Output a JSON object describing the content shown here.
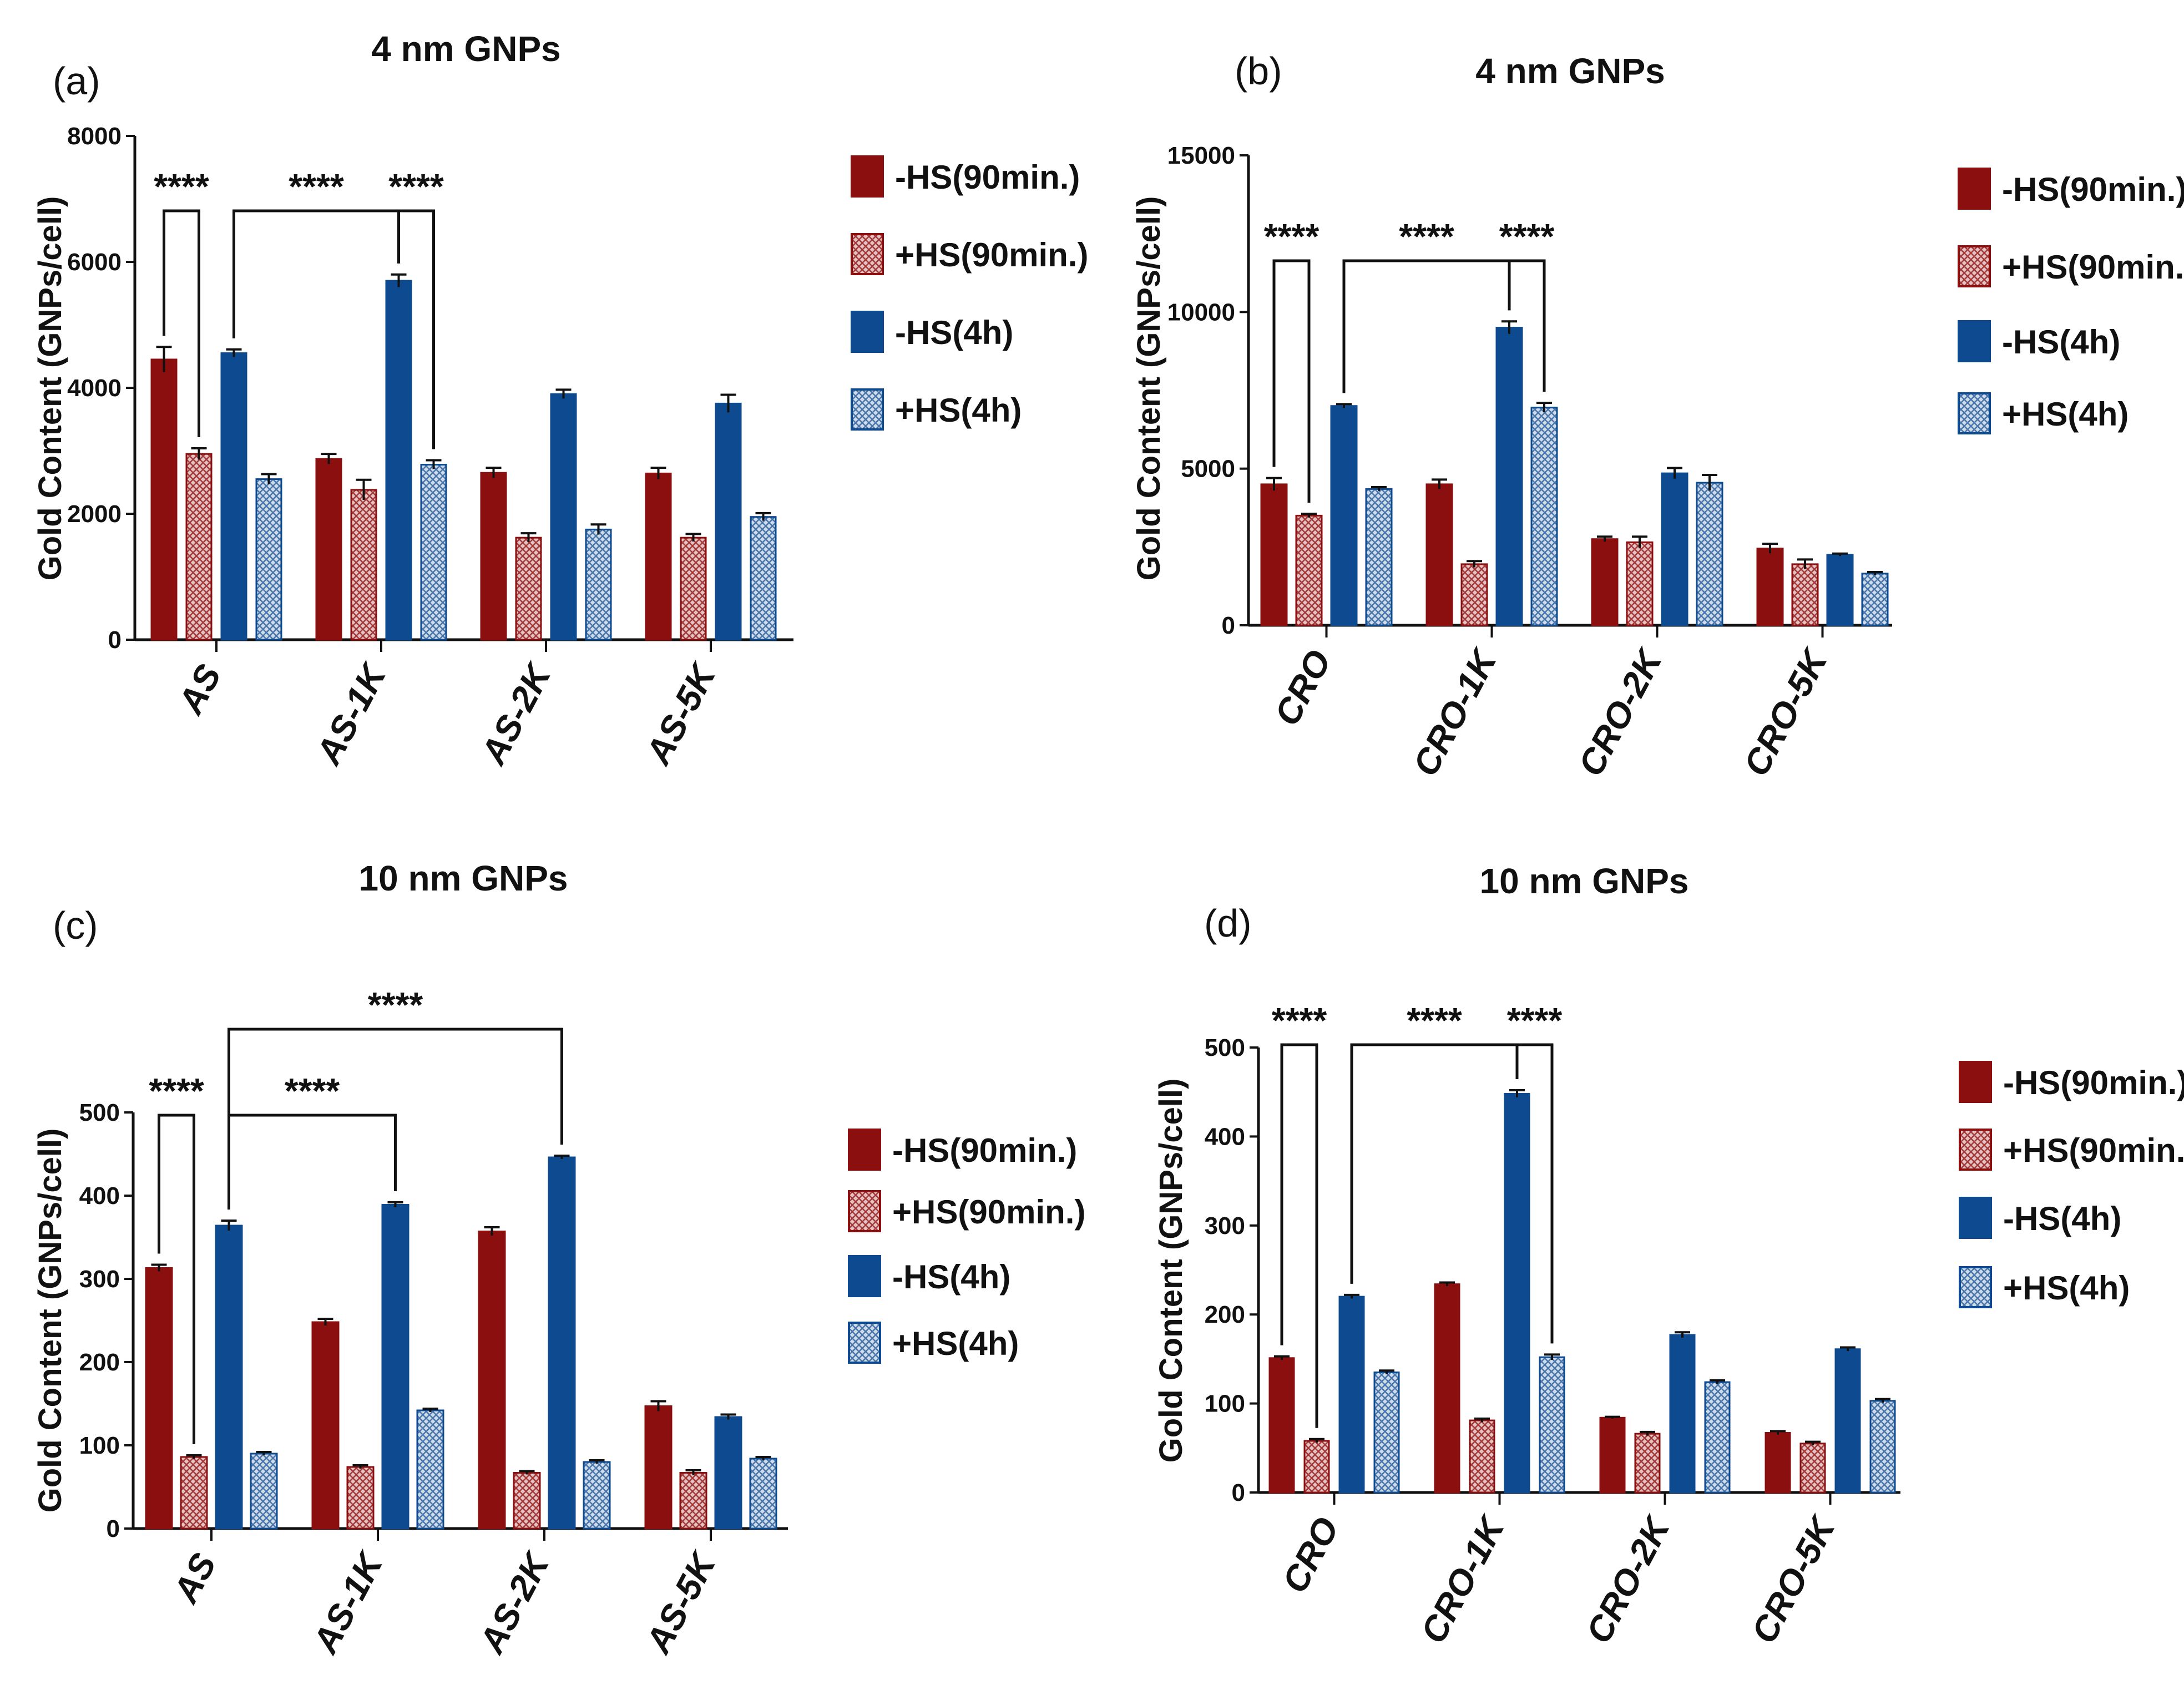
{
  "colors": {
    "minus_hs_90": "#8b0f0f",
    "plus_hs_90": "#c98a8a",
    "minus_hs_4h": "#0d4a8f",
    "plus_hs_4h": "#9cb6d6",
    "axis": "#111111"
  },
  "legend": {
    "items": [
      {
        "label": "-HS(90min.)",
        "key": "minus_hs_90",
        "pattern": false
      },
      {
        "label": "+HS(90min.)",
        "key": "plus_hs_90",
        "pattern": true
      },
      {
        "label": "-HS(4h)",
        "key": "minus_hs_4h",
        "pattern": false
      },
      {
        "label": "+HS(4h)",
        "key": "plus_hs_4h",
        "pattern": true
      }
    ]
  },
  "chart_data": [
    {
      "id": "a",
      "type": "bar",
      "panel_label": "(a)",
      "title": "4 nm GNPs",
      "ylabel": "Gold Content (GNPs/cell)",
      "ylim": [
        0,
        8000
      ],
      "yticks": [
        "0",
        "2000",
        "4000",
        "6000",
        "8000"
      ],
      "categories": [
        "AS",
        "AS-1K",
        "AS-2K",
        "AS-5K"
      ],
      "series": [
        {
          "name": "-HS(90min.)",
          "values": [
            4450,
            2870,
            2650,
            2640
          ],
          "errors": [
            200,
            80,
            80,
            90
          ]
        },
        {
          "name": "+HS(90min.)",
          "values": [
            2950,
            2380,
            1620,
            1620
          ],
          "errors": [
            90,
            160,
            70,
            60
          ]
        },
        {
          "name": "-HS(4h)",
          "values": [
            4550,
            5700,
            3900,
            3750
          ],
          "errors": [
            60,
            100,
            70,
            140
          ]
        },
        {
          "name": "+HS(4h)",
          "values": [
            2550,
            2780,
            1750,
            1950
          ],
          "errors": [
            80,
            70,
            80,
            60
          ]
        }
      ],
      "significance": [
        {
          "label": "****",
          "from": [
            0,
            0
          ],
          "to": [
            0,
            1
          ]
        },
        {
          "label": "****",
          "from": [
            0,
            2
          ],
          "to": [
            1,
            2
          ]
        },
        {
          "label": "****",
          "from": [
            1,
            2
          ],
          "to": [
            1,
            3
          ]
        }
      ]
    },
    {
      "id": "b",
      "type": "bar",
      "panel_label": "(b)",
      "title": "4 nm GNPs",
      "ylabel": "Gold Content (GNPs/cell)",
      "ylim": [
        0,
        15000
      ],
      "yticks": [
        "0",
        "5000",
        "10000",
        "15000"
      ],
      "categories": [
        "CRO",
        "CRO-1K",
        "CRO-2K",
        "CRO-5K"
      ],
      "series": [
        {
          "name": "-HS(90min.)",
          "values": [
            4500,
            4500,
            2750,
            2450
          ],
          "errors": [
            200,
            150,
            80,
            150
          ]
        },
        {
          "name": "+HS(90min.)",
          "values": [
            3500,
            1950,
            2650,
            1950
          ],
          "errors": [
            60,
            100,
            180,
            150
          ]
        },
        {
          "name": "-HS(4h)",
          "values": [
            7000,
            9500,
            4850,
            2250
          ],
          "errors": [
            60,
            200,
            170,
            40
          ]
        },
        {
          "name": "+HS(4h)",
          "values": [
            4350,
            6950,
            4550,
            1650
          ],
          "errors": [
            60,
            150,
            250,
            50
          ]
        }
      ],
      "significance": [
        {
          "label": "****",
          "from": [
            0,
            0
          ],
          "to": [
            0,
            1
          ]
        },
        {
          "label": "****",
          "from": [
            0,
            2
          ],
          "to": [
            1,
            2
          ]
        },
        {
          "label": "****",
          "from": [
            1,
            2
          ],
          "to": [
            1,
            3
          ]
        }
      ]
    },
    {
      "id": "c",
      "type": "bar",
      "panel_label": "(c)",
      "title": "10 nm GNPs",
      "ylabel": "Gold Content (GNPs/cell)",
      "ylim": [
        0,
        500
      ],
      "yticks": [
        "0",
        "100",
        "200",
        "300",
        "400",
        "500"
      ],
      "categories": [
        "AS",
        "AS-1K",
        "AS-2K",
        "AS-5K"
      ],
      "series": [
        {
          "name": "-HS(90min.)",
          "values": [
            313,
            248,
            357,
            147
          ],
          "errors": [
            4,
            4,
            5,
            6
          ]
        },
        {
          "name": "+HS(90min.)",
          "values": [
            86,
            74,
            67,
            67
          ],
          "errors": [
            2,
            2,
            2,
            3
          ]
        },
        {
          "name": "-HS(4h)",
          "values": [
            364,
            389,
            446,
            134
          ],
          "errors": [
            6,
            3,
            2,
            3
          ]
        },
        {
          "name": "+HS(4h)",
          "values": [
            90,
            142,
            80,
            84
          ],
          "errors": [
            2,
            2,
            2,
            2
          ]
        }
      ],
      "significance": [
        {
          "label": "****",
          "from": [
            0,
            0
          ],
          "to": [
            0,
            1
          ]
        },
        {
          "label": "****",
          "from": [
            0,
            2
          ],
          "to": [
            1,
            2
          ]
        },
        {
          "label": "****",
          "from": [
            0,
            2
          ],
          "to": [
            2,
            2
          ]
        }
      ]
    },
    {
      "id": "d",
      "type": "bar",
      "panel_label": "(d)",
      "title": "10 nm GNPs",
      "ylabel": "Gold Content (GNPs/cell)",
      "ylim": [
        0,
        500
      ],
      "yticks": [
        "0",
        "100",
        "200",
        "300",
        "400",
        "500"
      ],
      "categories": [
        "CRO",
        "CRO-1K",
        "CRO-2K",
        "CRO-5K"
      ],
      "series": [
        {
          "name": "-HS(90min.)",
          "values": [
            151,
            234,
            84,
            67
          ],
          "errors": [
            2,
            2,
            1,
            2
          ]
        },
        {
          "name": "+HS(90min.)",
          "values": [
            58,
            81,
            66,
            55
          ],
          "errors": [
            2,
            2,
            2,
            2
          ]
        },
        {
          "name": "-HS(4h)",
          "values": [
            220,
            448,
            177,
            161
          ],
          "errors": [
            2,
            4,
            3,
            2
          ]
        },
        {
          "name": "+HS(4h)",
          "values": [
            135,
            152,
            124,
            103
          ],
          "errors": [
            2,
            3,
            2,
            2
          ]
        }
      ],
      "significance": [
        {
          "label": "****",
          "from": [
            0,
            0
          ],
          "to": [
            0,
            1
          ]
        },
        {
          "label": "****",
          "from": [
            0,
            2
          ],
          "to": [
            1,
            2
          ]
        },
        {
          "label": "****",
          "from": [
            1,
            2
          ],
          "to": [
            1,
            3
          ]
        }
      ]
    }
  ]
}
